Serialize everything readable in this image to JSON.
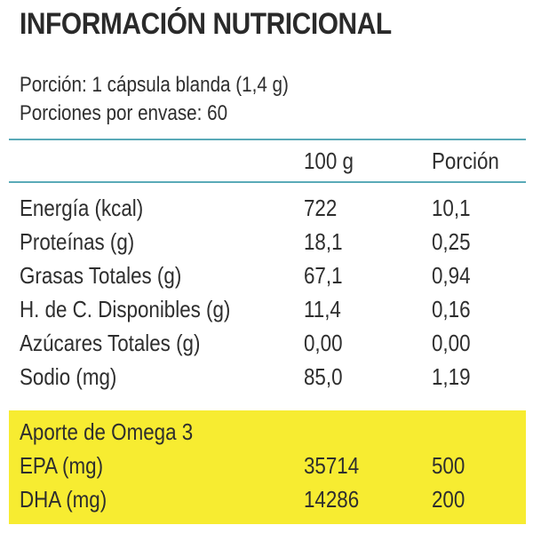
{
  "title": "INFORMACIÓN NUTRICIONAL",
  "serving": {
    "portion": "Porción: 1 cápsula blanda (1,4 g)",
    "per_container": "Porciones por envase: 60"
  },
  "table": {
    "headers": [
      "100 g",
      "Porción"
    ],
    "rows": [
      {
        "name": "Energía (kcal)",
        "per100": "722",
        "perPortion": "10,1"
      },
      {
        "name": "Proteínas (g)",
        "per100": "18,1",
        "perPortion": "0,25"
      },
      {
        "name": "Grasas Totales (g)",
        "per100": "67,1",
        "perPortion": "0,94"
      },
      {
        "name": "H. de C. Disponibles (g)",
        "per100": "11,4",
        "perPortion": "0,16"
      },
      {
        "name": "Azúcares Totales (g)",
        "per100": "0,00",
        "perPortion": "0,00"
      },
      {
        "name": "Sodio (mg)",
        "per100": "85,0",
        "perPortion": "1,19"
      }
    ]
  },
  "omega": {
    "heading": "Aporte de Omega 3",
    "rows": [
      {
        "name": "EPA (mg)",
        "per100": "35714",
        "perPortion": "500"
      },
      {
        "name": "DHA (mg)",
        "per100": "14286",
        "perPortion": "200"
      }
    ]
  },
  "colors": {
    "rule": "#5aaab8",
    "highlight": "#f7ec31",
    "text": "#2e2e2e"
  }
}
